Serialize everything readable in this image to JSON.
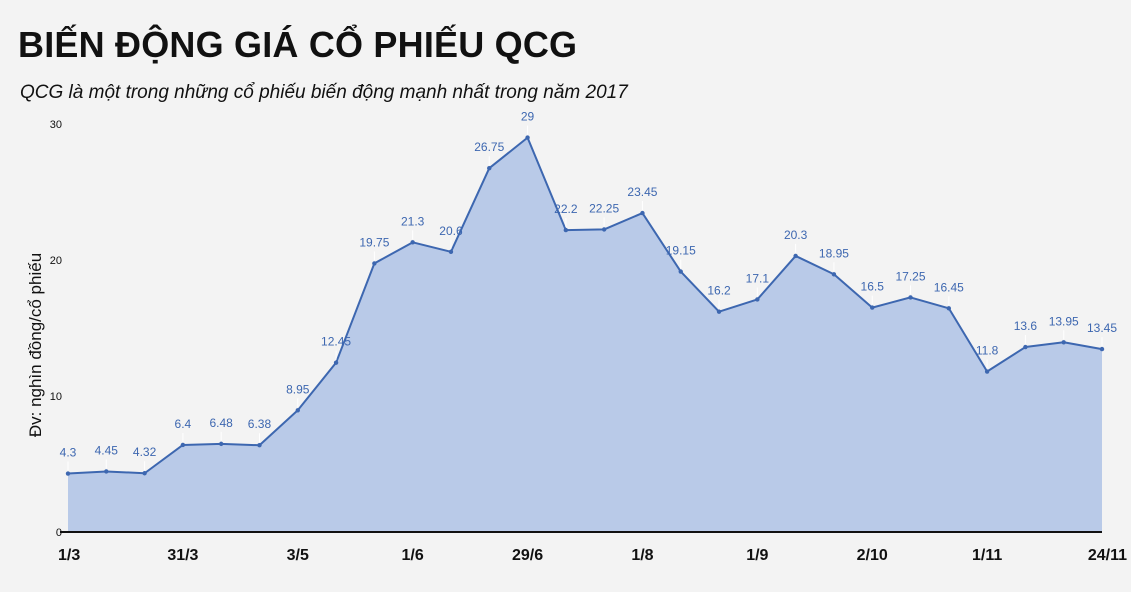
{
  "header": {
    "title": "BIẾN ĐỘNG GIÁ CỔ PHIẾU QCG",
    "subtitle": "QCG là một trong những cổ phiếu biến động mạnh nhất trong năm 2017"
  },
  "colors": {
    "line": "#3d67b0",
    "area": "#b9cae8",
    "label": "#3d67b0",
    "background": "#f3f3f3"
  },
  "chart_data": {
    "type": "area",
    "title": "BIẾN ĐỘNG GIÁ CỔ PHIẾU QCG",
    "subtitle": "QCG là một trong những cổ phiếu biến động mạnh nhất trong năm 2017",
    "ylabel": "Đv: nghìn đồng/cổ phiếu",
    "ylim": [
      0,
      30
    ],
    "yticks": [
      0,
      10,
      20,
      30
    ],
    "x_tick_labels": [
      "1/3",
      "31/3",
      "3/5",
      "1/6",
      "29/6",
      "1/8",
      "1/9",
      "2/10",
      "1/11",
      "24/11"
    ],
    "x_tick_point_index": [
      0,
      3,
      6,
      9,
      12,
      15,
      18,
      21,
      24,
      27
    ],
    "grid": false,
    "series": [
      {
        "values": [
          4.3,
          4.45,
          4.32,
          6.4,
          6.48,
          6.38,
          8.95,
          12.45,
          19.75,
          21.3,
          20.6,
          26.75,
          29,
          22.2,
          22.25,
          23.45,
          19.15,
          16.2,
          17.1,
          20.3,
          18.95,
          16.5,
          17.25,
          16.45,
          11.8,
          13.6,
          13.95,
          13.45
        ],
        "labels": [
          "4.3",
          "4.45",
          "4.32",
          "6.4",
          "6.48",
          "6.38",
          "8.95",
          "12.45",
          "19.75",
          "21.3",
          "20.6",
          "26.75",
          "29",
          "22.2",
          "22.25",
          "23.45",
          "19.15",
          "16.2",
          "17.1",
          "20.3",
          "18.95",
          "16.5",
          "17.25",
          "16.45",
          "11.8",
          "13.6",
          "13.95",
          "13.45"
        ]
      }
    ]
  }
}
